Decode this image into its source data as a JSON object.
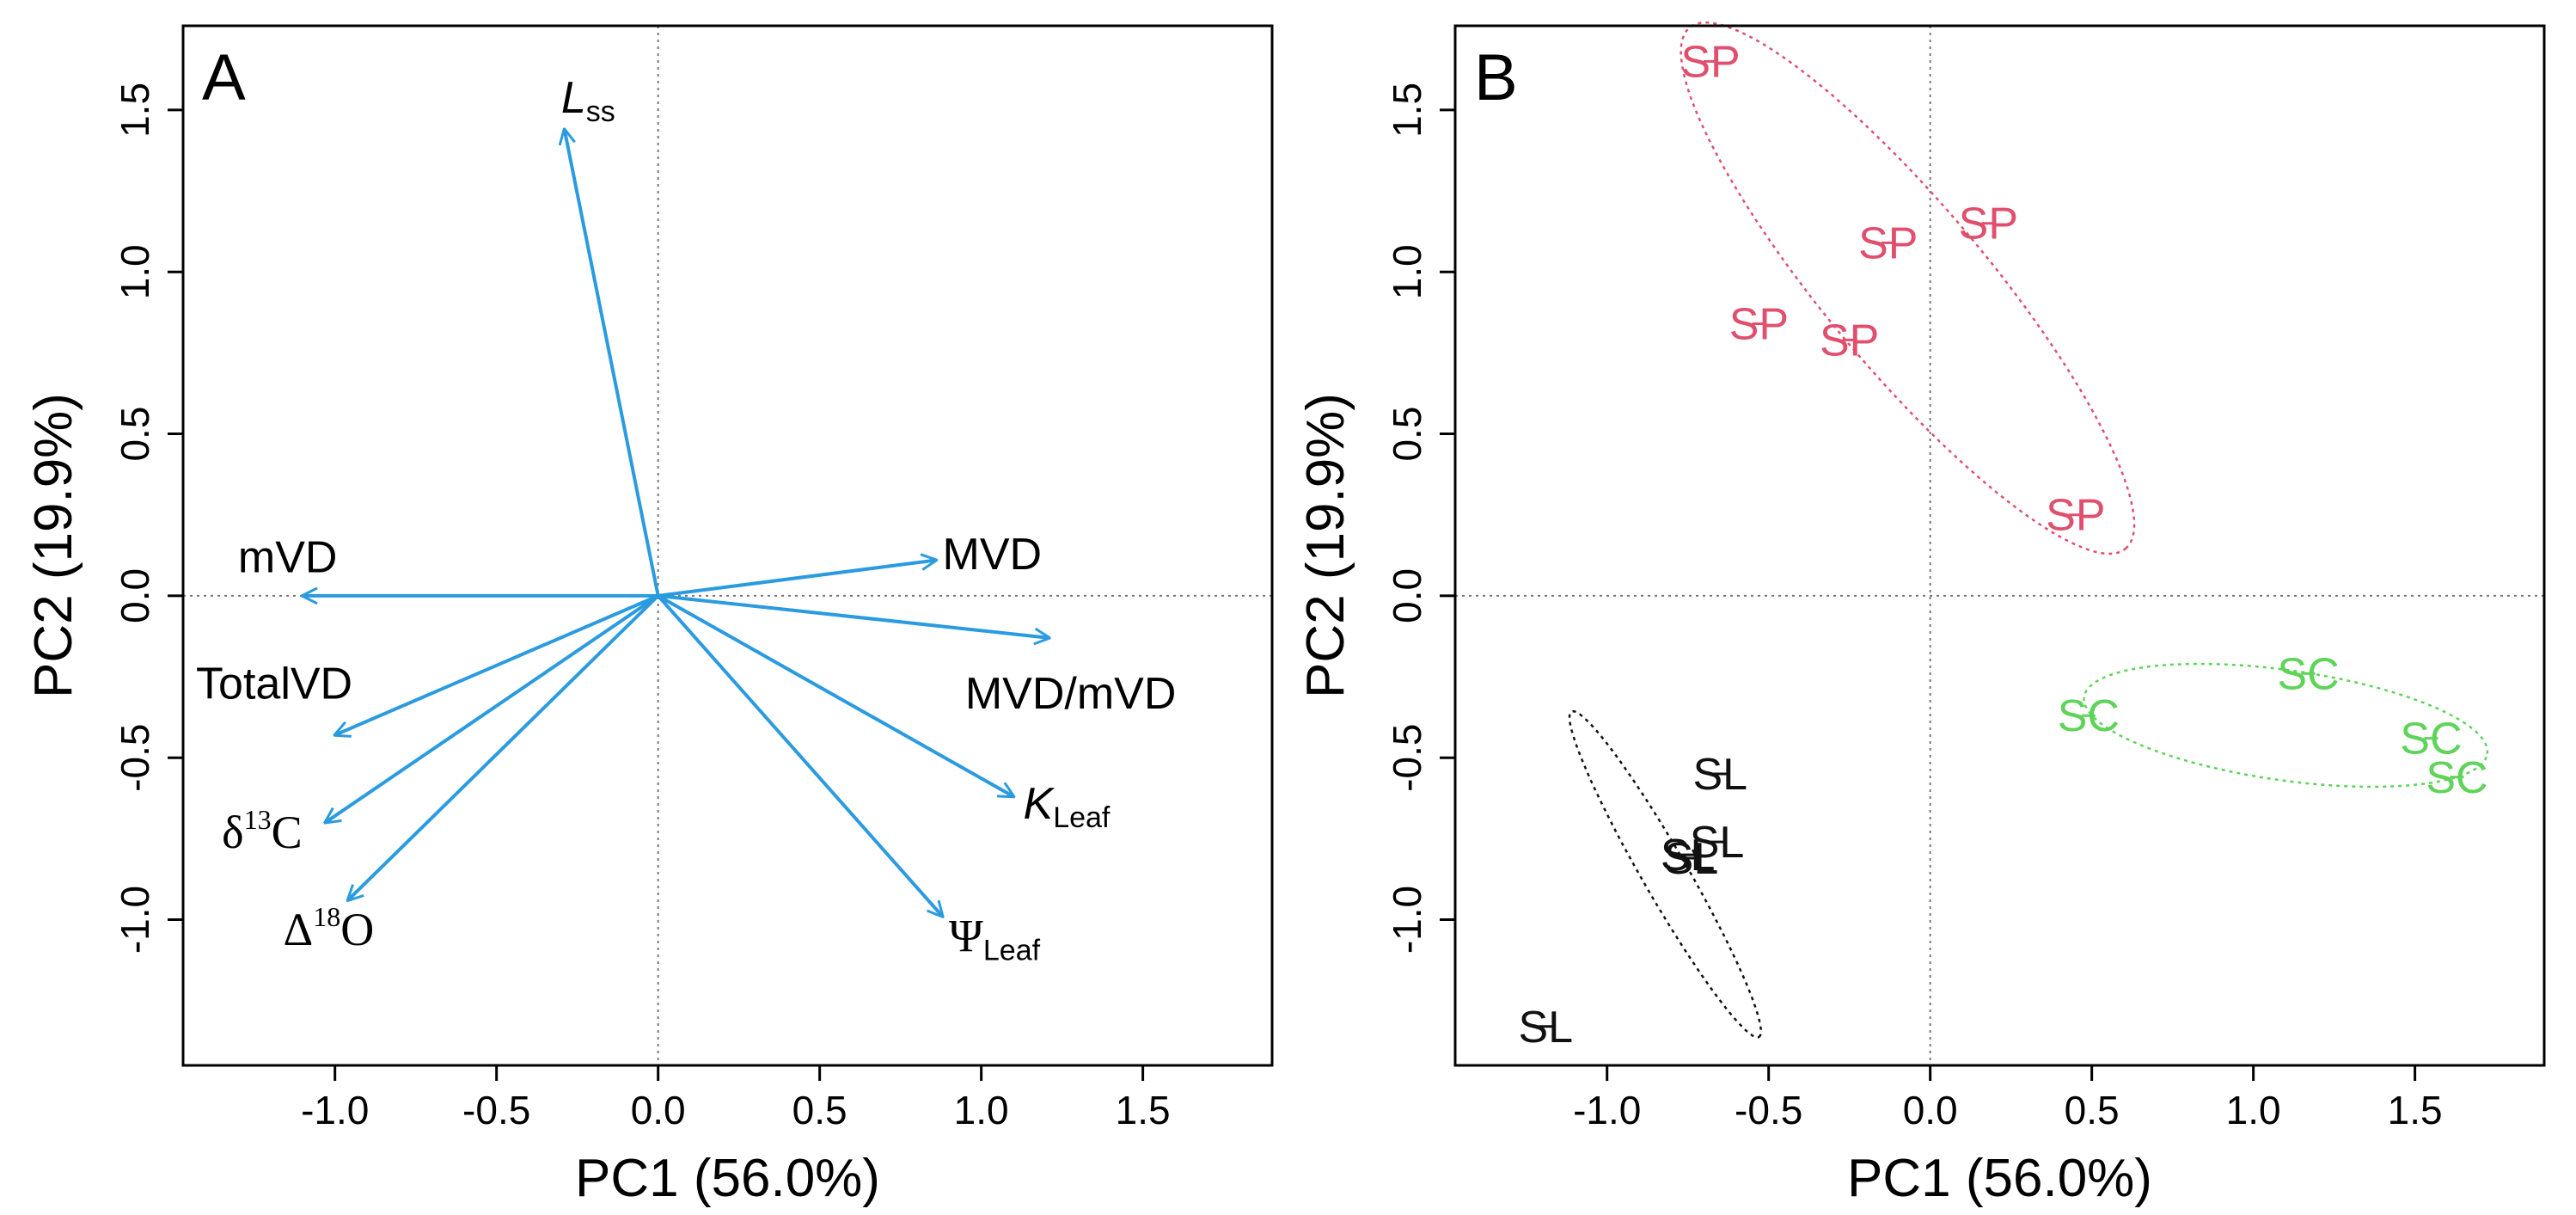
{
  "chart_data": [
    {
      "type": "scatter",
      "subtype": "pca-biplot-loadings",
      "panel_label": "A",
      "xlabel": "PC1 (56.0%)",
      "ylabel": "PC2 (19.9%)",
      "xlim": [
        -1.47,
        1.9
      ],
      "ylim": [
        -1.45,
        1.76
      ],
      "xticks": [
        -1.0,
        -0.5,
        0.0,
        0.5,
        1.0,
        1.5
      ],
      "xtick_labels": [
        "-1.0",
        "-0.5",
        "0.0",
        "0.5",
        "1.0",
        "1.5"
      ],
      "yticks": [
        -1.0,
        -0.5,
        0.0,
        0.5,
        1.0,
        1.5
      ],
      "ytick_labels": [
        "-1.0",
        "-0.5",
        "0.0",
        "0.5",
        "1.0",
        "1.5"
      ],
      "reference_lines": {
        "x": 0,
        "y": 0,
        "style": "dotted"
      },
      "arrow_color": "#2b9be0",
      "vectors": [
        {
          "name": "Lss",
          "label_main": "L",
          "label_sub": "ss",
          "x": -0.29,
          "y": 1.44,
          "label_x": -0.3,
          "label_y": 1.54
        },
        {
          "name": "mVD",
          "label_main": "mVD",
          "label_sub": "",
          "x": -1.1,
          "y": 0.0,
          "label_x": -1.3,
          "label_y": 0.12
        },
        {
          "name": "MVD",
          "label_main": "MVD",
          "label_sub": "",
          "x": 0.86,
          "y": 0.11,
          "label_x": 0.88,
          "label_y": 0.13
        },
        {
          "name": "MVD/mVD",
          "label_main": "MVD/mVD",
          "label_sub": "",
          "x": 1.21,
          "y": -0.13,
          "label_x": 0.95,
          "label_y": -0.3
        },
        {
          "name": "TotalVD",
          "label_main": "TotalVD",
          "label_sub": "",
          "x": -1.0,
          "y": -0.43,
          "label_x": -1.43,
          "label_y": -0.27
        },
        {
          "name": "KLeaf",
          "label_main": "K",
          "label_sub": "Leaf",
          "x": 1.1,
          "y": -0.62,
          "label_x": 1.13,
          "label_y": -0.64
        },
        {
          "name": "d13C",
          "label_main": "δ",
          "label_sup": "13",
          "label_tail": "C",
          "x": -1.03,
          "y": -0.7,
          "label_x": -1.35,
          "label_y": -0.73
        },
        {
          "name": "D18O",
          "label_main": "Δ",
          "label_sup": "18",
          "label_tail": "O",
          "x": -0.96,
          "y": -0.94,
          "label_x": -1.16,
          "label_y": -1.03
        },
        {
          "name": "PsiLeaf",
          "label_main": "Ψ",
          "label_sub": "Leaf",
          "x": 0.88,
          "y": -0.99,
          "label_x": 0.9,
          "label_y": -1.05
        }
      ]
    },
    {
      "type": "scatter",
      "subtype": "pca-scores-with-ellipses",
      "panel_label": "B",
      "xlabel": "PC1 (56.0%)",
      "ylabel": "PC2 (19.9%)",
      "xlim": [
        -1.47,
        1.9
      ],
      "ylim": [
        -1.45,
        1.76
      ],
      "xticks": [
        -1.0,
        -0.5,
        0.0,
        0.5,
        1.0,
        1.5
      ],
      "xtick_labels": [
        "-1.0",
        "-0.5",
        "0.0",
        "0.5",
        "1.0",
        "1.5"
      ],
      "yticks": [
        -1.0,
        -0.5,
        0.0,
        0.5,
        1.0,
        1.5
      ],
      "ytick_labels": [
        "-1.0",
        "-0.5",
        "0.0",
        "0.5",
        "1.0",
        "1.5"
      ],
      "reference_lines": {
        "x": 0,
        "y": 0,
        "style": "dotted"
      },
      "groups": [
        {
          "name": "SP",
          "color": "#e0506e",
          "points": [
            {
              "x": -0.68,
              "y": 1.65
            },
            {
              "x": -0.13,
              "y": 1.09
            },
            {
              "x": 0.18,
              "y": 1.15
            },
            {
              "x": -0.53,
              "y": 0.84
            },
            {
              "x": -0.25,
              "y": 0.79
            },
            {
              "x": 0.45,
              "y": 0.25
            }
          ],
          "ellipse": {
            "cx": -0.07,
            "cy": 0.95,
            "rx": 1.05,
            "ry": 0.25,
            "angle_deg": -50
          }
        },
        {
          "name": "SC",
          "color": "#5fd35a",
          "points": [
            {
              "x": 1.17,
              "y": -0.24
            },
            {
              "x": 0.49,
              "y": -0.37
            },
            {
              "x": 1.55,
              "y": -0.44
            },
            {
              "x": 1.63,
              "y": -0.56
            }
          ],
          "ellipse": {
            "cx": 1.1,
            "cy": -0.4,
            "rx": 0.63,
            "ry": 0.17,
            "angle_deg": -8
          }
        },
        {
          "name": "SL",
          "color": "#111111",
          "points": [
            {
              "x": -0.65,
              "y": -0.55
            },
            {
              "x": -0.66,
              "y": -0.76
            },
            {
              "x": -0.75,
              "y": -0.8
            },
            {
              "x": -0.74,
              "y": -0.81
            },
            {
              "x": -1.19,
              "y": -1.33
            }
          ],
          "ellipse": {
            "cx": -0.82,
            "cy": -0.86,
            "rx": 0.58,
            "ry": 0.07,
            "angle_deg": -60
          }
        }
      ]
    }
  ]
}
